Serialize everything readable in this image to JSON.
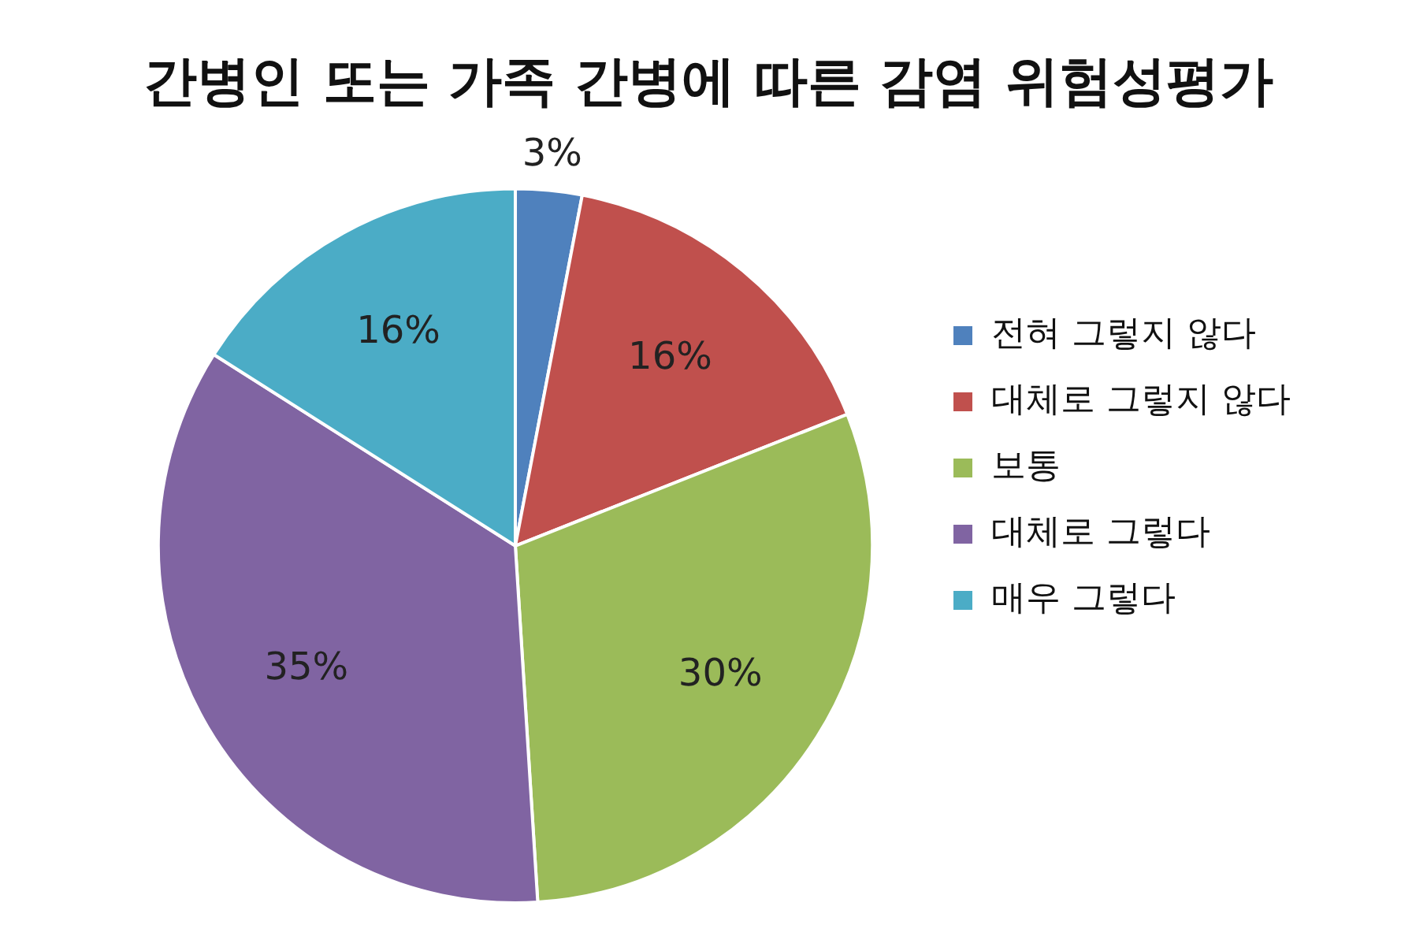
{
  "chart_data": {
    "type": "pie",
    "title": "간병인 또는 가족 간병에 따른 감염 위험성평가",
    "categories": [
      "전혀 그렇지 않다",
      "대체로 그렇지 않다",
      "보통",
      "대체로 그렇다",
      "매우 그렇다"
    ],
    "values": [
      3,
      16,
      30,
      35,
      16
    ],
    "colors": [
      "#4f81bd",
      "#c0504d",
      "#9bbb59",
      "#8064a2",
      "#4bacc6"
    ],
    "value_labels": [
      "3%",
      "16%",
      "30%",
      "35%",
      "16%"
    ],
    "legend": "right"
  }
}
